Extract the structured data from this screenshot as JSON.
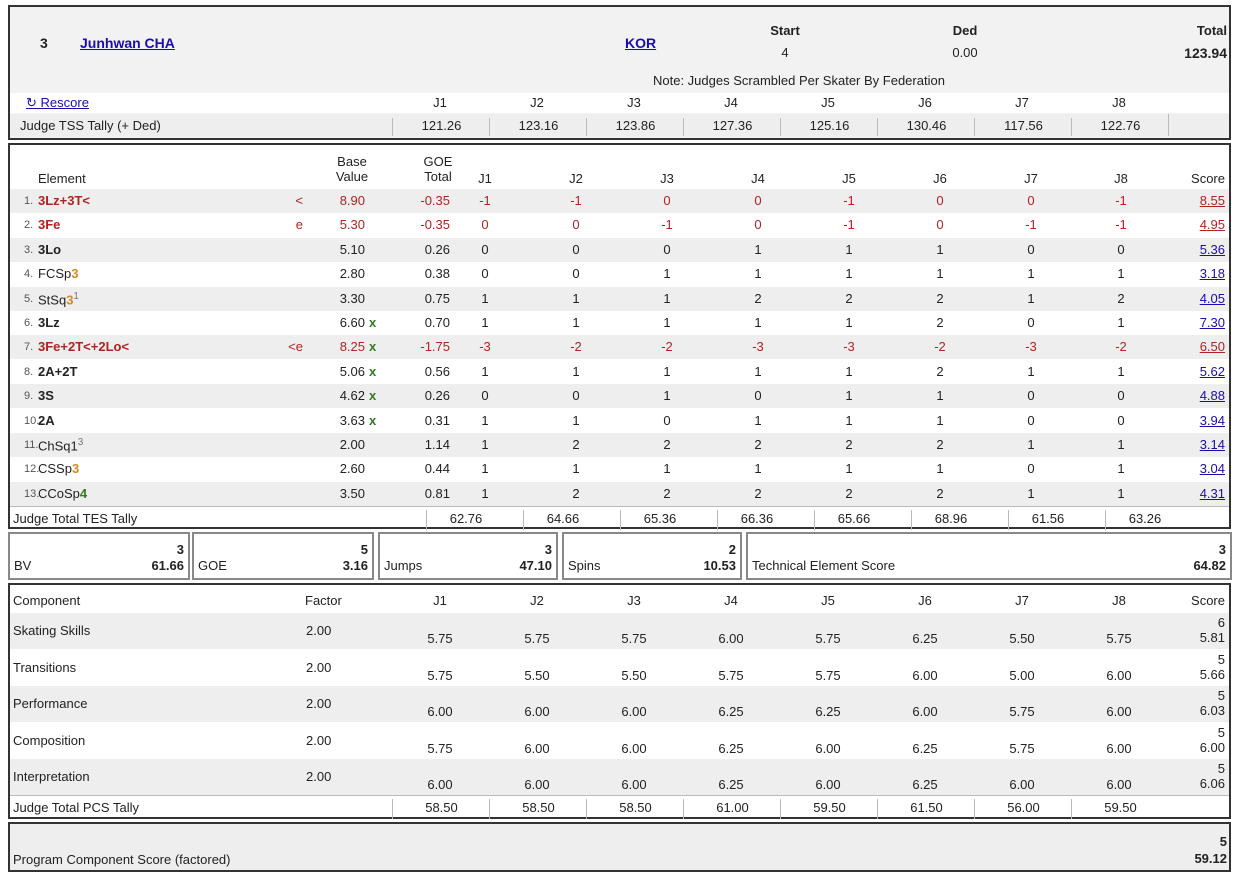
{
  "header": {
    "rank": "3",
    "name": "Junhwan CHA",
    "nation": "KOR",
    "start_label": "Start",
    "start_value": "4",
    "ded_label": "Ded",
    "ded_value": "0.00",
    "total_label": "Total",
    "total_value": "123.94",
    "note": "Note: Judges Scrambled Per Skater By Federation",
    "rescore": "Rescore",
    "tss_label": "Judge TSS Tally (+ Ded)"
  },
  "judges": [
    "J1",
    "J2",
    "J3",
    "J4",
    "J5",
    "J6",
    "J7",
    "J8"
  ],
  "tss_tally": [
    "121.26",
    "123.16",
    "123.86",
    "127.36",
    "125.16",
    "130.46",
    "117.56",
    "122.76"
  ],
  "elements_header": {
    "element": "Element",
    "base_value": "Base Value",
    "goe_total": "GOE Total",
    "score": "Score"
  },
  "elements": [
    {
      "num": "1.",
      "name": "3Lz+3T<",
      "level": "",
      "level_color": "",
      "level_sup": "",
      "style": "red",
      "info": "<",
      "bv": "8.90",
      "x": "",
      "goe": "-0.35",
      "j": [
        "-1",
        "-1",
        "0",
        "0",
        "-1",
        "0",
        "0",
        "-1"
      ],
      "score": "8.55"
    },
    {
      "num": "2.",
      "name": "3Fe",
      "level": "",
      "level_color": "",
      "level_sup": "",
      "style": "red",
      "info": "e",
      "bv": "5.30",
      "x": "",
      "goe": "-0.35",
      "j": [
        "0",
        "0",
        "-1",
        "0",
        "-1",
        "0",
        "-1",
        "-1"
      ],
      "score": "4.95"
    },
    {
      "num": "3.",
      "name": "3Lo",
      "level": "",
      "level_color": "",
      "level_sup": "",
      "style": "bold",
      "info": "",
      "bv": "5.10",
      "x": "",
      "goe": "0.26",
      "j": [
        "0",
        "0",
        "0",
        "1",
        "1",
        "1",
        "0",
        "0"
      ],
      "score": "5.36"
    },
    {
      "num": "4.",
      "name": "FCSp",
      "level": "3",
      "level_color": "#d78a1e",
      "level_sup": "",
      "style": "normal",
      "info": "",
      "bv": "2.80",
      "x": "",
      "goe": "0.38",
      "j": [
        "0",
        "0",
        "1",
        "1",
        "1",
        "1",
        "1",
        "1"
      ],
      "score": "3.18"
    },
    {
      "num": "5.",
      "name": "StSq",
      "level": "3",
      "level_color": "#d78a1e",
      "level_sup": "1",
      "style": "normal",
      "info": "",
      "bv": "3.30",
      "x": "",
      "goe": "0.75",
      "j": [
        "1",
        "1",
        "1",
        "2",
        "2",
        "2",
        "1",
        "2"
      ],
      "score": "4.05"
    },
    {
      "num": "6.",
      "name": "3Lz",
      "level": "",
      "level_color": "",
      "level_sup": "",
      "style": "bold",
      "info": "",
      "bv": "6.60",
      "x": "x",
      "goe": "0.70",
      "j": [
        "1",
        "1",
        "1",
        "1",
        "1",
        "2",
        "0",
        "1"
      ],
      "score": "7.30"
    },
    {
      "num": "7.",
      "name": "3Fe+2T<+2Lo<",
      "level": "",
      "level_color": "",
      "level_sup": "",
      "style": "red",
      "info": "<e",
      "bv": "8.25",
      "x": "x",
      "goe": "-1.75",
      "j": [
        "-3",
        "-2",
        "-2",
        "-3",
        "-3",
        "-2",
        "-3",
        "-2"
      ],
      "score": "6.50"
    },
    {
      "num": "8.",
      "name": "2A+2T",
      "level": "",
      "level_color": "",
      "level_sup": "",
      "style": "bold",
      "info": "",
      "bv": "5.06",
      "x": "x",
      "goe": "0.56",
      "j": [
        "1",
        "1",
        "1",
        "1",
        "1",
        "2",
        "1",
        "1"
      ],
      "score": "5.62"
    },
    {
      "num": "9.",
      "name": "3S",
      "level": "",
      "level_color": "",
      "level_sup": "",
      "style": "bold",
      "info": "",
      "bv": "4.62",
      "x": "x",
      "goe": "0.26",
      "j": [
        "0",
        "0",
        "1",
        "0",
        "1",
        "1",
        "0",
        "0"
      ],
      "score": "4.88"
    },
    {
      "num": "10.",
      "name": "2A",
      "level": "",
      "level_color": "",
      "level_sup": "",
      "style": "bold",
      "info": "",
      "bv": "3.63",
      "x": "x",
      "goe": "0.31",
      "j": [
        "1",
        "1",
        "0",
        "1",
        "1",
        "1",
        "0",
        "0"
      ],
      "score": "3.94"
    },
    {
      "num": "11.",
      "name": "ChSq1",
      "level": "",
      "level_color": "",
      "level_sup": "3",
      "style": "normal",
      "info": "",
      "bv": "2.00",
      "x": "",
      "goe": "1.14",
      "j": [
        "1",
        "2",
        "2",
        "2",
        "2",
        "2",
        "1",
        "1"
      ],
      "score": "3.14"
    },
    {
      "num": "12.",
      "name": "CSSp",
      "level": "3",
      "level_color": "#d78a1e",
      "level_sup": "",
      "style": "normal",
      "info": "",
      "bv": "2.60",
      "x": "",
      "goe": "0.44",
      "j": [
        "1",
        "1",
        "1",
        "1",
        "1",
        "1",
        "0",
        "1"
      ],
      "score": "3.04"
    },
    {
      "num": "13.",
      "name": "CCoSp",
      "level": "4",
      "level_color": "#2e7d1e",
      "level_sup": "",
      "style": "normal",
      "info": "",
      "bv": "3.50",
      "x": "",
      "goe": "0.81",
      "j": [
        "1",
        "2",
        "2",
        "2",
        "2",
        "2",
        "1",
        "1"
      ],
      "score": "4.31"
    }
  ],
  "tes_tally": {
    "label": "Judge Total TES Tally",
    "values": [
      "62.76",
      "64.66",
      "65.36",
      "66.36",
      "65.66",
      "68.96",
      "61.56",
      "63.26"
    ]
  },
  "summary": [
    {
      "label": "BV",
      "count": "3",
      "value": "61.66"
    },
    {
      "label": "GOE",
      "count": "5",
      "value": "3.16"
    },
    {
      "label": "Jumps",
      "count": "3",
      "value": "47.10"
    },
    {
      "label": "Spins",
      "count": "2",
      "value": "10.53"
    },
    {
      "label": "Technical Element Score",
      "count": "3",
      "value": "64.82"
    }
  ],
  "components_header": {
    "component": "Component",
    "factor": "Factor",
    "score": "Score"
  },
  "components": [
    {
      "name": "Skating Skills",
      "factor": "2.00",
      "j": [
        "5.75",
        "5.75",
        "5.75",
        "6.00",
        "5.75",
        "6.25",
        "5.50",
        "5.75"
      ],
      "rank": "6",
      "score": "5.81"
    },
    {
      "name": "Transitions",
      "factor": "2.00",
      "j": [
        "5.75",
        "5.50",
        "5.50",
        "5.75",
        "5.75",
        "6.00",
        "5.00",
        "6.00"
      ],
      "rank": "5",
      "score": "5.66"
    },
    {
      "name": "Performance",
      "factor": "2.00",
      "j": [
        "6.00",
        "6.00",
        "6.00",
        "6.25",
        "6.25",
        "6.00",
        "5.75",
        "6.00"
      ],
      "rank": "5",
      "score": "6.03"
    },
    {
      "name": "Composition",
      "factor": "2.00",
      "j": [
        "5.75",
        "6.00",
        "6.00",
        "6.25",
        "6.00",
        "6.25",
        "5.75",
        "6.00"
      ],
      "rank": "5",
      "score": "6.00"
    },
    {
      "name": "Interpretation",
      "factor": "2.00",
      "j": [
        "6.00",
        "6.00",
        "6.00",
        "6.25",
        "6.00",
        "6.25",
        "6.00",
        "6.00"
      ],
      "rank": "5",
      "score": "6.06"
    }
  ],
  "pcs_tally": {
    "label": "Judge Total PCS Tally",
    "values": [
      "58.50",
      "58.50",
      "58.50",
      "61.00",
      "59.50",
      "61.50",
      "56.00",
      "59.50"
    ]
  },
  "pcs": {
    "label": "Program Component Score (factored)",
    "rank": "5",
    "value": "59.12"
  }
}
